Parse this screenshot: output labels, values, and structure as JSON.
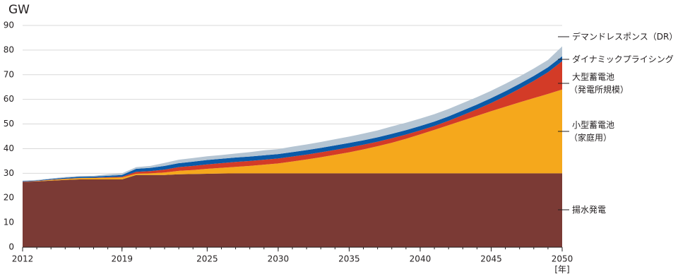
{
  "chart_data": {
    "type": "stacked-area",
    "ylabel": "GW",
    "xunit": "[年]",
    "x": [
      2012,
      2013,
      2014,
      2015,
      2016,
      2017,
      2018,
      2019,
      2020,
      2021,
      2022,
      2023,
      2024,
      2025,
      2026,
      2027,
      2028,
      2029,
      2030,
      2031,
      2032,
      2033,
      2034,
      2035,
      2036,
      2037,
      2038,
      2039,
      2040,
      2041,
      2042,
      2043,
      2044,
      2045,
      2046,
      2047,
      2048,
      2049,
      2050
    ],
    "xlim": [
      2012,
      2050
    ],
    "xticks": [
      2012,
      2019,
      2025,
      2030,
      2035,
      2040,
      2045,
      2050
    ],
    "ylim": [
      0,
      90
    ],
    "yticks": [
      0,
      10,
      20,
      30,
      40,
      50,
      60,
      70,
      80,
      90
    ],
    "grid": true,
    "series": [
      {
        "name": "揚水発電",
        "color": "#7b3a35",
        "values": [
          26.5,
          26.7,
          27,
          27.3,
          27.5,
          27.5,
          27.5,
          27.5,
          29.3,
          29.3,
          29.3,
          29.6,
          29.7,
          29.8,
          29.9,
          30,
          30,
          30,
          30,
          30,
          30,
          30,
          30,
          30,
          30,
          30,
          30,
          30,
          30,
          30,
          30,
          30,
          30,
          30,
          30,
          30,
          30,
          30,
          30
        ]
      },
      {
        "name": "小型蓄電池\n（家庭用）",
        "color": "#f5a81c",
        "values": [
          0,
          0.1,
          0.3,
          0.4,
          0.5,
          0.6,
          0.7,
          0.8,
          0.5,
          0.7,
          1,
          1.4,
          1.6,
          2,
          2.3,
          2.6,
          3,
          3.5,
          4,
          4.8,
          5.6,
          6.5,
          7.5,
          8.5,
          9.7,
          11,
          12.4,
          14,
          15.8,
          17.6,
          19.5,
          21.4,
          23.3,
          25.2,
          27,
          28.8,
          30.5,
          32.2,
          34
        ]
      },
      {
        "name": "大型蓄電池\n（発電所規模）",
        "color": "#d33b27",
        "values": [
          0.1,
          0.1,
          0.1,
          0.1,
          0.1,
          0.1,
          0.2,
          0.3,
          0.8,
          0.9,
          1.2,
          1.5,
          1.7,
          1.8,
          1.9,
          2,
          2,
          2,
          2,
          2,
          2,
          2,
          2,
          2,
          1.9,
          1.8,
          1.8,
          1.7,
          1.6,
          1.6,
          1.8,
          2.2,
          2.7,
          3.3,
          4.3,
          5.5,
          7,
          8.8,
          11.5
        ]
      },
      {
        "name": "ダイナミックプライシング",
        "color": "#0a5aa8",
        "values": [
          0.2,
          0.2,
          0.3,
          0.4,
          0.5,
          0.5,
          0.6,
          0.7,
          1.2,
          1.3,
          1.5,
          1.6,
          1.7,
          1.8,
          1.8,
          1.8,
          1.8,
          1.8,
          1.8,
          1.8,
          1.8,
          1.8,
          1.8,
          1.8,
          1.8,
          1.8,
          1.8,
          1.8,
          1.8,
          1.8,
          1.8,
          1.9,
          1.9,
          2,
          2,
          2,
          2,
          2,
          2
        ]
      },
      {
        "name": "デマンドレスポンス（DR）",
        "color": "#b5c5d3",
        "values": [
          0.2,
          0.2,
          0.2,
          0.3,
          0.3,
          0.3,
          0.6,
          0.7,
          0.7,
          0.8,
          1.2,
          1.4,
          1.5,
          1.5,
          1.5,
          1.6,
          1.8,
          2,
          2,
          2.2,
          2.3,
          2.4,
          2.5,
          2.6,
          2.7,
          2.8,
          3,
          3,
          3,
          3,
          3,
          3,
          3,
          3,
          3,
          3,
          3,
          3,
          4
        ]
      }
    ]
  }
}
